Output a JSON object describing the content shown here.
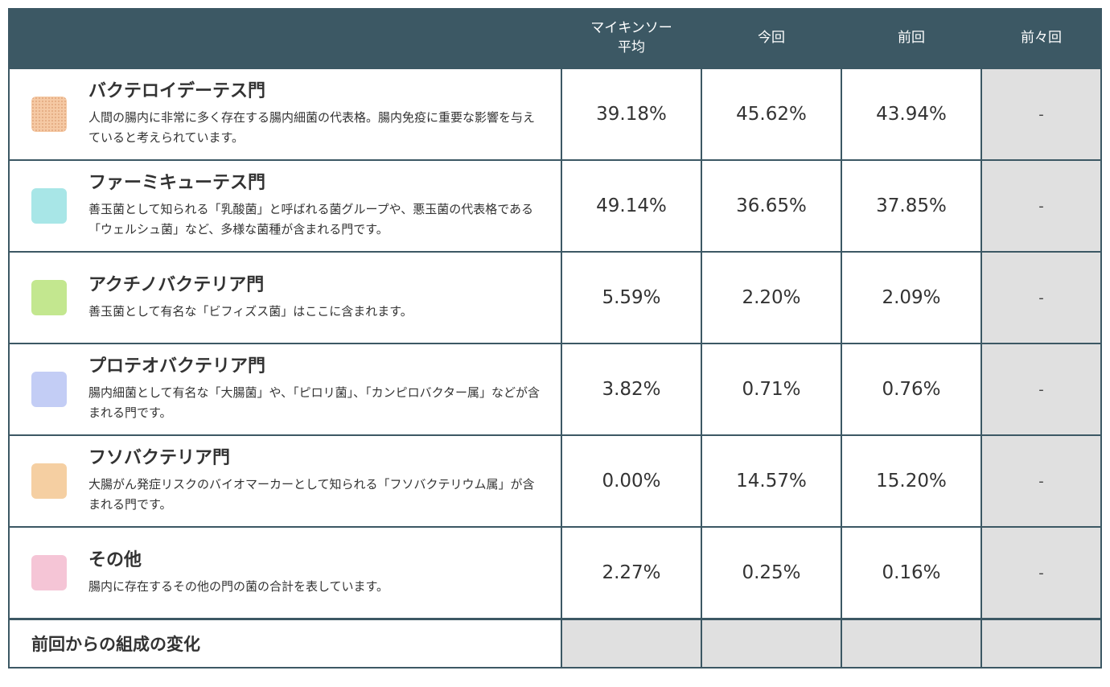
{
  "header": {
    "name": "",
    "avg_line1": "マイキンソー",
    "avg_line2": "平均",
    "current": "今回",
    "previous": "前回",
    "before_previous": "前々回"
  },
  "rows": [
    {
      "name": "バクテロイデーテス門",
      "desc": "人間の腸内に非常に多く存在する腸内細菌の代表格。腸内免疫に重要な影響を与えていると考えられています。",
      "color": "#f5c9a4",
      "avg": "39.18%",
      "current": "45.62%",
      "previous": "43.94%",
      "before_previous": "-"
    },
    {
      "name": "ファーミキューテス門",
      "desc": "善玉菌として知られる「乳酸菌」と呼ばれる菌グループや、悪玉菌の代表格である「ウェルシュ菌」など、多様な菌種が含まれる門です。",
      "color": "#a8e6e7",
      "avg": "49.14%",
      "current": "36.65%",
      "previous": "37.85%",
      "before_previous": "-"
    },
    {
      "name": "アクチノバクテリア門",
      "desc": "善玉菌として有名な「ビフィズス菌」はここに含まれます。",
      "color": "#c3e78f",
      "avg": "5.59%",
      "current": "2.20%",
      "previous": "2.09%",
      "before_previous": "-"
    },
    {
      "name": "プロテオバクテリア門",
      "desc": "腸内細菌として有名な「大腸菌」や、「ピロリ菌」、「カンピロバクター属」などが含まれる門です。",
      "color": "#c3cdf5",
      "avg": "3.82%",
      "current": "0.71%",
      "previous": "0.76%",
      "before_previous": "-"
    },
    {
      "name": "フソバクテリア門",
      "desc": "大腸がん発症リスクのバイオマーカーとして知られる「フソバクテリウム属」が含まれる門です。",
      "color": "#f5cfa2",
      "avg": "0.00%",
      "current": "14.57%",
      "previous": "15.20%",
      "before_previous": "-"
    },
    {
      "name": "その他",
      "desc": "腸内に存在するその他の門の菌の合計を表しています。",
      "color": "#f5c5d6",
      "avg": "2.27%",
      "current": "0.25%",
      "previous": "0.16%",
      "before_previous": "-"
    }
  ],
  "footer": {
    "label": "前回からの組成の変化"
  }
}
